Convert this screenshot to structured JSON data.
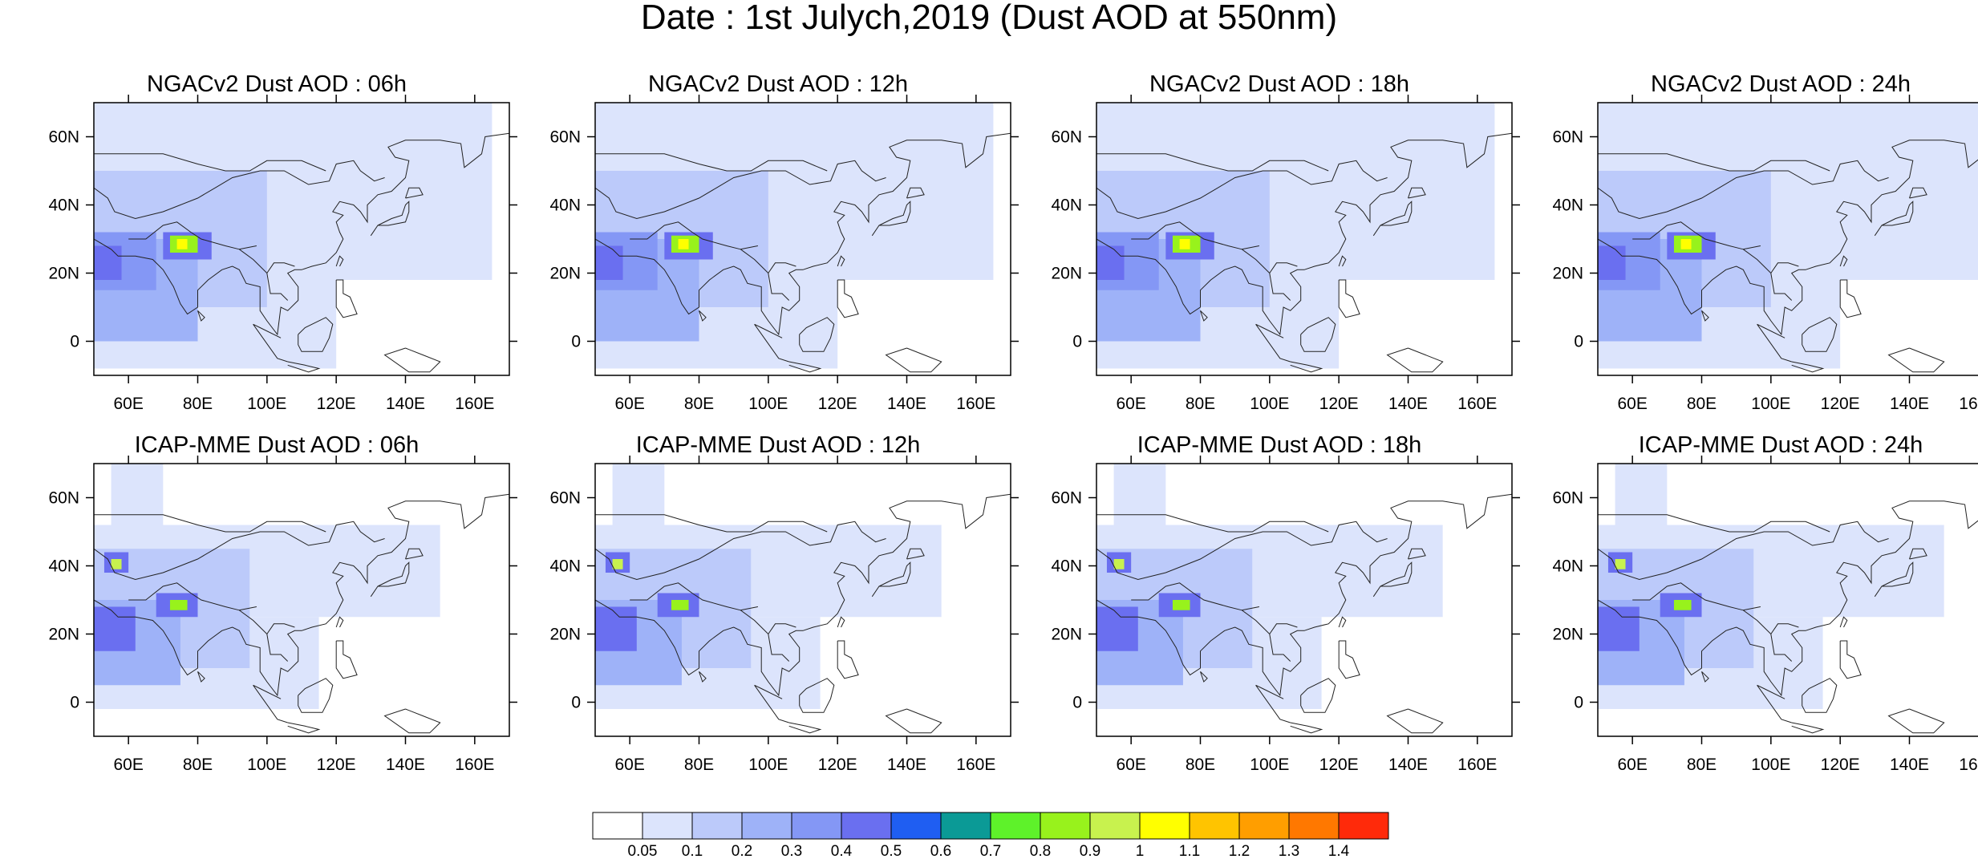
{
  "title": "Date : 1st Julych,2019 (Dust AOD at 550nm)",
  "map_axes": {
    "lon_ticks": [
      "60E",
      "80E",
      "100E",
      "120E",
      "140E",
      "160E"
    ],
    "lat_ticks": [
      "60N",
      "40N",
      "20N",
      "0"
    ],
    "lon_range": [
      50,
      170
    ],
    "lat_range": [
      -10,
      70
    ]
  },
  "panels": [
    {
      "title": "NGACv2 Dust AOD : 06h",
      "model": "NGACv2",
      "lead": "06h"
    },
    {
      "title": "NGACv2 Dust AOD : 12h",
      "model": "NGACv2",
      "lead": "12h"
    },
    {
      "title": "NGACv2 Dust AOD : 18h",
      "model": "NGACv2",
      "lead": "18h"
    },
    {
      "title": "NGACv2 Dust AOD : 24h",
      "model": "NGACv2",
      "lead": "24h"
    },
    {
      "title": "ICAP-MME Dust AOD : 06h",
      "model": "ICAP-MME",
      "lead": "06h"
    },
    {
      "title": "ICAP-MME Dust AOD : 12h",
      "model": "ICAP-MME",
      "lead": "12h"
    },
    {
      "title": "ICAP-MME Dust AOD : 18h",
      "model": "ICAP-MME",
      "lead": "18h"
    },
    {
      "title": "ICAP-MME Dust AOD : 24h",
      "model": "ICAP-MME",
      "lead": "24h"
    }
  ],
  "colorbar": {
    "labels": [
      "0.05",
      "0.1",
      "0.2",
      "0.3",
      "0.4",
      "0.5",
      "0.6",
      "0.7",
      "0.8",
      "0.9",
      "1",
      "1.1",
      "1.2",
      "1.3",
      "1.4"
    ],
    "colors": [
      "#ffffff",
      "#dce4fc",
      "#bccafa",
      "#9eb2f8",
      "#8497f5",
      "#6a6ff0",
      "#1f5ef2",
      "#0b9a96",
      "#5ef22a",
      "#98f21c",
      "#c8f24e",
      "#ffff00",
      "#ffc400",
      "#ff9e00",
      "#ff7800",
      "#ff2a0a"
    ]
  }
}
